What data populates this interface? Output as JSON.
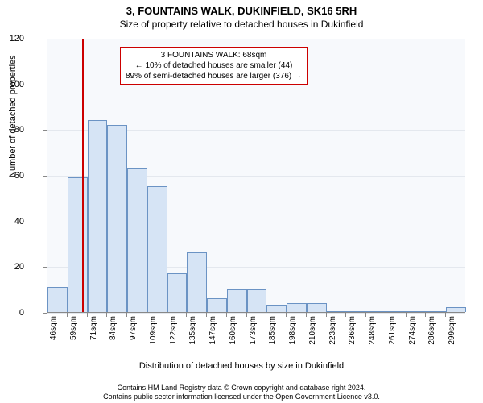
{
  "title": "3, FOUNTAINS WALK, DUKINFIELD, SK16 5RH",
  "subtitle": "Size of property relative to detached houses in Dukinfield",
  "ylabel": "Number of detached properties",
  "xlabel": "Distribution of detached houses by size in Dukinfield",
  "footer_line1": "Contains HM Land Registry data © Crown copyright and database right 2024.",
  "footer_line2": "Contains public sector information licensed under the Open Government Licence v3.0.",
  "info_box": {
    "line1": "3 FOUNTAINS WALK: 68sqm",
    "line2": "← 10% of detached houses are smaller (44)",
    "line3": "89% of semi-detached houses are larger (376) →",
    "border_color": "#cc0000"
  },
  "chart": {
    "type": "histogram",
    "plot_bg": "#f7f9fc",
    "grid_color": "#e4e8ee",
    "bar_fill": "#d6e4f5",
    "bar_stroke": "#6b93c4",
    "ref_line_color": "#cc0000",
    "ref_line_x_index": 1.75,
    "ylim": [
      0,
      120
    ],
    "ytick_step": 20,
    "yticks": [
      0,
      20,
      40,
      60,
      80,
      100,
      120
    ],
    "categories": [
      "46sqm",
      "59sqm",
      "71sqm",
      "84sqm",
      "97sqm",
      "109sqm",
      "122sqm",
      "135sqm",
      "147sqm",
      "160sqm",
      "173sqm",
      "185sqm",
      "198sqm",
      "210sqm",
      "223sqm",
      "236sqm",
      "248sqm",
      "261sqm",
      "274sqm",
      "286sqm",
      "299sqm"
    ],
    "values": [
      11,
      59,
      84,
      82,
      63,
      55,
      17,
      26,
      6,
      10,
      10,
      3,
      4,
      4,
      0,
      0,
      0,
      0,
      0,
      0,
      2
    ],
    "bar_width_ratio": 1.0,
    "title_fontsize": 13,
    "subtitle_fontsize": 12,
    "label_fontsize": 11,
    "tick_fontsize": 10
  }
}
